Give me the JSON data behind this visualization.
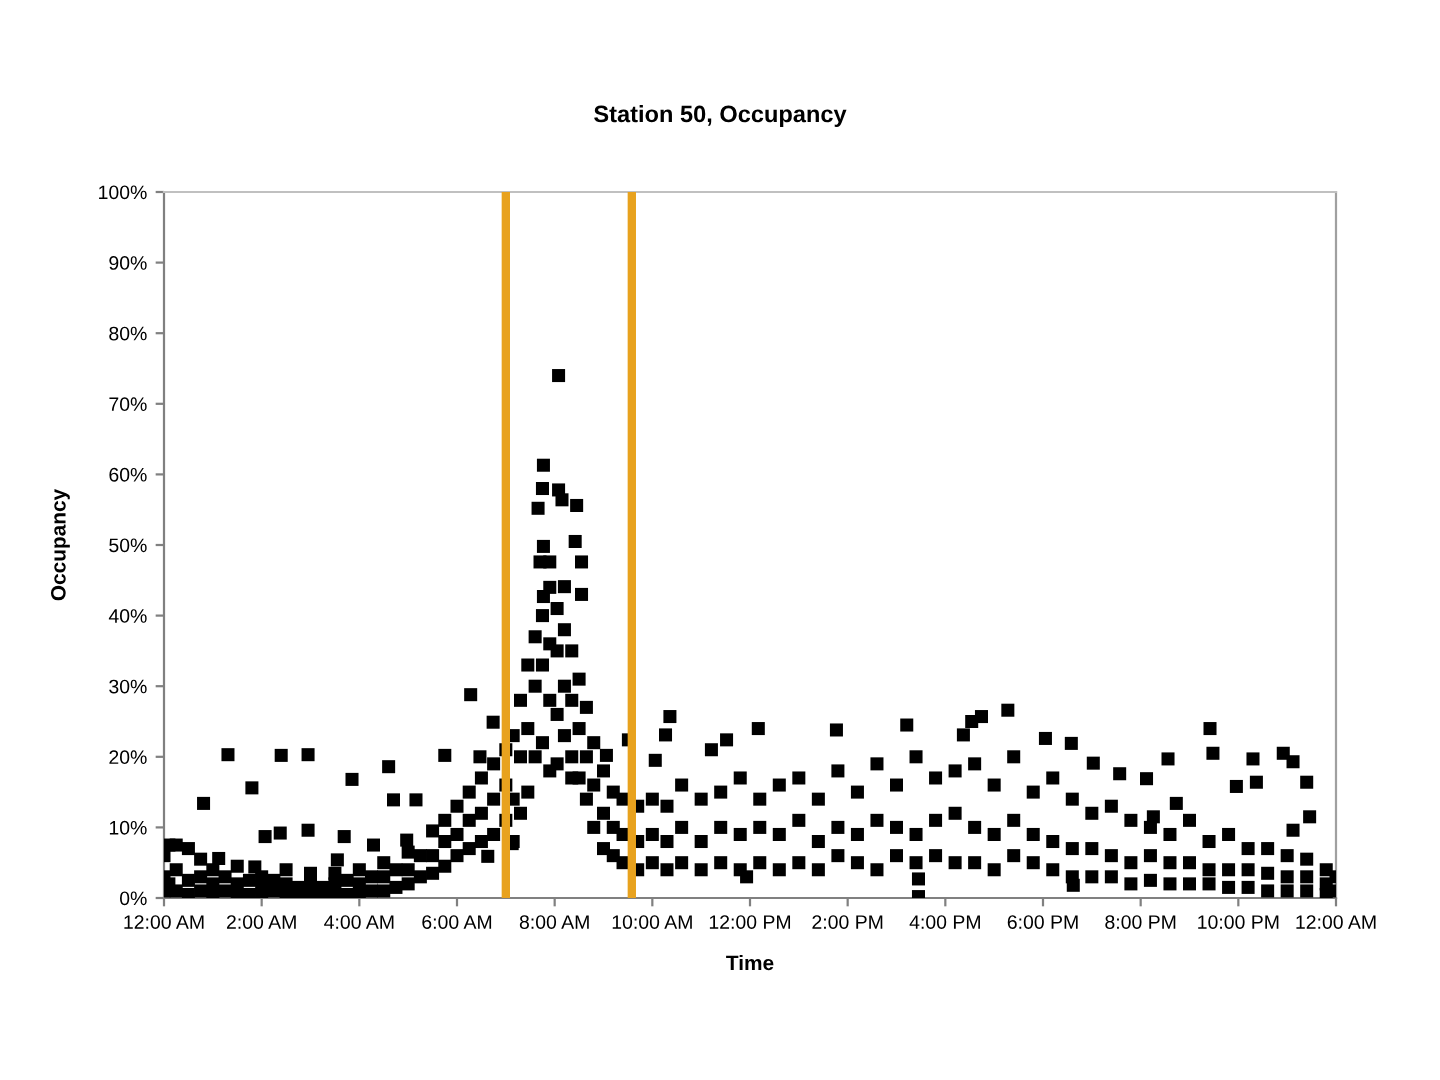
{
  "chart_data": {
    "type": "scatter",
    "title": "Station 50, Occupancy",
    "xlabel": "Time",
    "ylabel": "Occupancy",
    "marker": "square",
    "x": [
      0,
      0,
      0,
      0.1,
      0.1,
      0.25,
      0.25,
      0.25,
      0.5,
      0.5,
      0.5,
      0.75,
      0.75,
      0.75,
      1,
      1,
      1,
      1.25,
      1.25,
      1.5,
      1.5,
      1.5,
      1.75,
      1.75,
      2,
      2,
      2,
      2.25,
      2.25,
      2.5,
      2.5,
      2.5,
      2.75,
      2.75,
      3,
      3,
      3,
      3.25,
      3.25,
      3.5,
      3.5,
      3.5,
      3.75,
      3.75,
      4,
      4,
      4,
      4.25,
      4.25,
      4.5,
      4.5,
      4.5,
      4.75,
      4.75,
      5,
      5,
      5,
      5.25,
      5.25,
      5.5,
      5.5,
      5.5,
      5.75,
      5.75,
      5.75,
      6,
      6,
      6,
      6.25,
      6.25,
      6.25,
      6.5,
      6.5,
      6.5,
      6.75,
      6.75,
      6.75,
      7,
      7,
      7,
      7.15,
      7.15,
      7.15,
      7.3,
      7.3,
      7.3,
      7.45,
      7.45,
      7.45,
      7.6,
      7.6,
      7.6,
      7.75,
      7.75,
      7.75,
      7.9,
      7.9,
      7.9,
      7.9,
      8.05,
      8.05,
      8.05,
      8.05,
      8.2,
      8.2,
      8.2,
      8.35,
      8.35,
      8.35,
      8.35,
      8.5,
      8.5,
      8.5,
      8.65,
      8.65,
      8.65,
      8.8,
      8.8,
      8.8,
      9,
      9,
      9,
      9.2,
      9.2,
      9.2,
      9.4,
      9.4,
      9.4,
      9.7,
      9.7,
      9.7,
      10,
      10,
      10,
      10.3,
      10.3,
      10.3,
      10.6,
      10.6,
      10.6,
      11,
      11,
      11,
      11.4,
      11.4,
      11.4,
      11.8,
      11.8,
      11.8,
      12.2,
      12.2,
      12.2,
      12.6,
      12.6,
      12.6,
      13,
      13,
      13,
      13.4,
      13.4,
      13.4,
      13.8,
      13.8,
      13.8,
      14.2,
      14.2,
      14.2,
      14.6,
      14.6,
      14.6,
      15,
      15,
      15,
      15.4,
      15.4,
      15.4,
      15.8,
      15.8,
      15.8,
      16.2,
      16.2,
      16.2,
      16.6,
      16.6,
      16.6,
      17,
      17,
      17,
      17.4,
      17.4,
      17.4,
      17.8,
      17.8,
      17.8,
      18.2,
      18.2,
      18.2,
      18.6,
      18.6,
      18.6,
      19,
      19,
      19,
      19.4,
      19.4,
      19.4,
      19.8,
      19.8,
      19.8,
      20.2,
      20.2,
      20.2,
      20.6,
      20.6,
      20.6,
      21,
      21,
      21,
      21.4,
      21.4,
      21.4,
      21.8,
      21.8,
      21.8,
      22.2,
      22.2,
      22.2,
      22.6,
      22.6,
      22.6,
      23,
      23,
      23,
      23.4,
      23.4,
      23.4,
      23.8,
      23.8,
      23.8,
      24,
      24,
      0.81,
      1.12,
      1.31,
      1.8,
      1.86,
      2.07,
      2.38,
      2.4,
      2.95,
      2.95,
      3.55,
      3.69,
      3.85,
      4.29,
      4.6,
      4.7,
      4.97,
      5.16,
      5.75,
      6.28,
      6.47,
      6.63,
      6.74,
      7.13,
      7.66,
      7.7,
      7.75,
      7.77,
      7.77,
      7.77,
      7.9,
      8.08,
      8.08,
      8.15,
      8.2,
      8.42,
      8.45,
      8.55,
      8.55,
      9.06,
      9.51,
      10.06,
      10.27,
      10.36,
      11.21,
      11.52,
      11.93,
      12.17,
      13.77,
      15.21,
      15.45,
      15.45,
      16.37,
      16.54,
      16.74,
      17.28,
      18.05,
      18.58,
      18.62,
      19.03,
      19.57,
      20.12,
      20.26,
      20.56,
      20.73,
      21.42,
      21.48,
      21.96,
      22.3,
      22.37,
      22.92,
      23.12,
      23.12,
      23.4,
      23.46
    ],
    "series": [
      {
        "color": "#000000",
        "values": [
          1,
          3,
          6,
          2,
          7.5,
          1,
          4,
          7.5,
          0.5,
          2.5,
          7,
          1,
          3,
          5.5,
          0.5,
          2,
          4,
          1,
          3,
          0.5,
          2,
          4.5,
          0.5,
          2.5,
          0.5,
          1.5,
          3,
          1,
          2.5,
          0.5,
          2,
          4,
          0.5,
          1.5,
          0.5,
          2,
          3.5,
          0.5,
          1.5,
          0.5,
          2,
          3.5,
          0.5,
          2.5,
          0.5,
          2,
          4,
          1,
          3,
          1,
          3,
          5,
          1.5,
          4,
          2,
          4,
          6.5,
          3,
          6,
          3.5,
          6,
          9.5,
          4.5,
          8,
          11,
          6,
          9,
          13,
          7,
          11,
          15,
          8,
          12,
          17,
          9,
          14,
          19,
          11,
          16,
          21,
          8,
          14,
          23,
          12,
          20,
          28,
          15,
          24,
          33,
          20,
          30,
          37,
          22,
          33,
          40,
          18,
          28,
          36,
          44,
          19,
          26,
          35,
          41,
          23,
          30,
          38,
          17,
          20,
          28,
          35,
          17,
          24,
          31,
          14,
          20,
          27,
          10,
          16,
          22,
          7,
          12,
          18,
          6,
          10,
          15,
          5,
          9,
          14,
          4,
          8,
          13,
          5,
          9,
          14,
          4,
          8,
          13,
          5,
          10,
          16,
          4,
          8,
          14,
          5,
          10,
          15,
          4,
          9,
          17,
          5,
          10,
          14,
          4,
          9,
          16,
          5,
          11,
          17,
          4,
          8,
          14,
          6,
          10,
          18,
          5,
          9,
          15,
          4,
          11,
          19,
          6,
          10,
          16,
          5,
          9,
          20,
          6,
          11,
          17,
          5,
          12,
          18,
          5,
          10,
          19,
          4,
          9,
          16,
          6,
          11,
          20,
          5,
          9,
          15,
          4,
          8,
          17,
          3,
          7,
          14,
          3,
          7,
          12,
          3,
          6,
          13,
          2,
          5,
          11,
          2.5,
          6,
          10,
          2,
          5,
          9,
          2,
          5,
          11,
          2,
          4,
          8,
          1.5,
          4,
          9,
          1.5,
          4,
          7,
          1,
          3.5,
          7,
          1,
          3,
          6,
          1,
          3,
          5.5,
          0.5,
          2,
          4,
          1,
          3,
          13.4,
          5.6,
          20.3,
          15.6,
          4.4,
          8.7,
          9.2,
          20.2,
          20.3,
          9.6,
          5.4,
          8.7,
          16.8,
          7.5,
          18.6,
          13.9,
          8.2,
          13.9,
          20.2,
          28.8,
          20,
          5.9,
          24.9,
          7.7,
          55.2,
          47.6,
          58,
          61.3,
          49.8,
          42.7,
          47.6,
          74,
          57.8,
          56.4,
          44.1,
          50.5,
          55.6,
          47.6,
          43,
          20.2,
          22.4,
          19.5,
          23.1,
          25.7,
          21,
          22.4,
          3,
          24,
          23.8,
          24.5,
          0.2,
          2.7,
          23.1,
          25,
          25.7,
          26.6,
          22.6,
          21.9,
          1.8,
          19.1,
          17.6,
          16.9,
          11.5,
          19.7,
          13.4,
          24,
          20.5,
          15.8,
          19.7,
          16.4,
          20.5,
          19.3,
          9.6,
          16.4,
          11.5
        ]
      }
    ],
    "xlim": [
      0,
      24
    ],
    "xticks": [
      {
        "value": 0,
        "label": "12:00 AM"
      },
      {
        "value": 2,
        "label": "2:00 AM"
      },
      {
        "value": 4,
        "label": "4:00 AM"
      },
      {
        "value": 6,
        "label": "6:00 AM"
      },
      {
        "value": 8,
        "label": "8:00 AM"
      },
      {
        "value": 10,
        "label": "10:00 AM"
      },
      {
        "value": 12,
        "label": "12:00 PM"
      },
      {
        "value": 14,
        "label": "2:00 PM"
      },
      {
        "value": 16,
        "label": "4:00 PM"
      },
      {
        "value": 18,
        "label": "6:00 PM"
      },
      {
        "value": 20,
        "label": "8:00 PM"
      },
      {
        "value": 22,
        "label": "10:00 PM"
      },
      {
        "value": 24,
        "label": "12:00 AM"
      }
    ],
    "ylim": [
      0,
      100
    ],
    "yticks": [
      {
        "value": 0,
        "label": "0%"
      },
      {
        "value": 10,
        "label": "10%"
      },
      {
        "value": 20,
        "label": "20%"
      },
      {
        "value": 30,
        "label": "30%"
      },
      {
        "value": 40,
        "label": "40%"
      },
      {
        "value": 50,
        "label": "50%"
      },
      {
        "value": 60,
        "label": "60%"
      },
      {
        "value": 70,
        "label": "70%"
      },
      {
        "value": 80,
        "label": "80%"
      },
      {
        "value": 90,
        "label": "90%"
      },
      {
        "value": 100,
        "label": "100%"
      }
    ],
    "ref_lines": [
      {
        "axis": "x",
        "value": 7.0,
        "color": "#e8a21e"
      },
      {
        "axis": "x",
        "value": 9.58,
        "color": "#e8a21e"
      }
    ]
  }
}
